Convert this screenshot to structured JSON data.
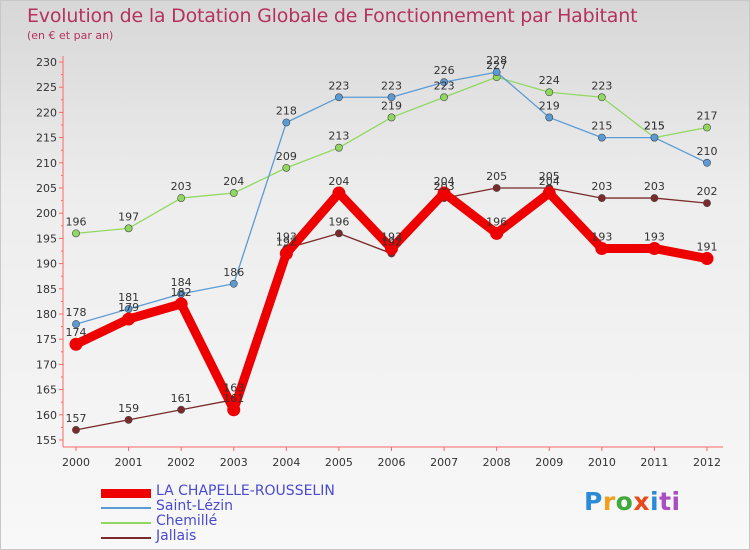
{
  "title": "Evolution de la Dotation Globale de Fonctionnement par Habitant",
  "subtitle": "(en € et par an)",
  "logo": {
    "text": "Proxiti",
    "letters": [
      "P",
      "r",
      "o",
      "x",
      "i",
      "ti"
    ],
    "colors": [
      "#2b8bd6",
      "#f0a01c",
      "#3fa93a",
      "#e84a1a",
      "#2b8bd6",
      "#a94fc2"
    ]
  },
  "chart_data": {
    "type": "line",
    "x": [
      "2000",
      "2001",
      "2002",
      "2003",
      "2004",
      "2005",
      "2006",
      "2007",
      "2008",
      "2009",
      "2010",
      "2011",
      "2012"
    ],
    "ylim": [
      155,
      230
    ],
    "yticks": [
      "155",
      "160",
      "165",
      "170",
      "175",
      "180",
      "185",
      "190",
      "195",
      "200",
      "205",
      "210",
      "215",
      "220",
      "225",
      "230"
    ],
    "grid": false,
    "legend_position": "bottom-left",
    "series": [
      {
        "name": "LA CHAPELLE-ROUSSELIN",
        "color": "#ee0000",
        "values": [
          174,
          179,
          182,
          161,
          192,
          204,
          193,
          204,
          196,
          204,
          193,
          193,
          191
        ]
      },
      {
        "name": "Saint-Lézin",
        "color": "#5b9bd5",
        "values": [
          178,
          181,
          184,
          186,
          218,
          223,
          223,
          226,
          228,
          219,
          215,
          215,
          210
        ]
      },
      {
        "name": "Chemillé",
        "color": "#90d860",
        "values": [
          196,
          197,
          203,
          204,
          209,
          213,
          219,
          223,
          227,
          224,
          223,
          215,
          217
        ]
      },
      {
        "name": "Jallais",
        "color": "#7a2a2a",
        "values": [
          157,
          159,
          161,
          163,
          193,
          196,
          192,
          203,
          205,
          205,
          203,
          203,
          202
        ]
      }
    ]
  }
}
